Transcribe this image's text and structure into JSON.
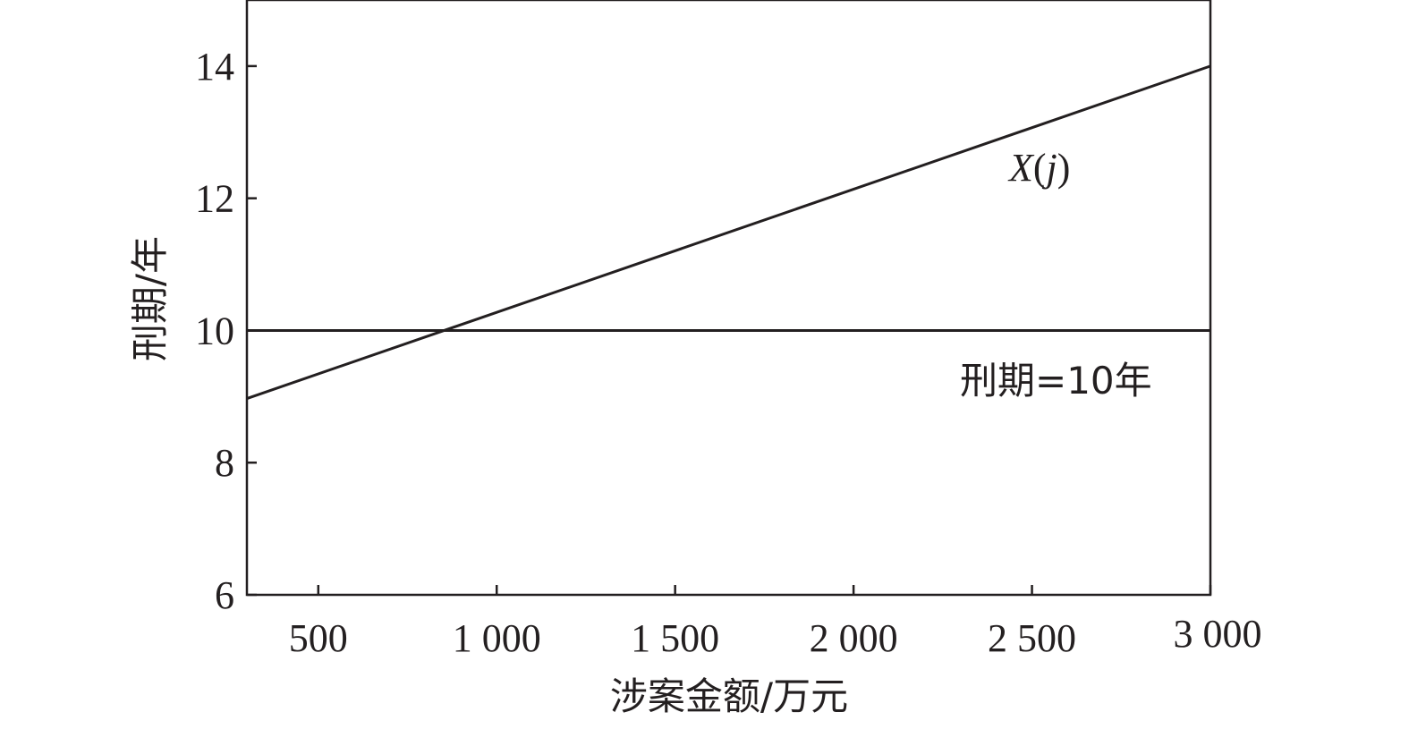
{
  "chart_data": {
    "type": "line",
    "title": "",
    "xlabel": "涉案金额/万元",
    "ylabel": "刑期/年",
    "xlim": [
      300,
      3000
    ],
    "ylim": [
      6,
      15
    ],
    "x_ticks": [
      500,
      1000,
      1500,
      2000,
      2500,
      3000
    ],
    "x_tick_labels": [
      "500",
      "1 000",
      "1 500",
      "2 000",
      "2 500",
      "3 000"
    ],
    "y_ticks": [
      6,
      8,
      10,
      12,
      14
    ],
    "y_tick_labels": [
      "6",
      "8",
      "10",
      "12",
      "14"
    ],
    "grid": false,
    "series": [
      {
        "name": "X(j)",
        "x": [
          300,
          3000
        ],
        "y": [
          8.97,
          14.0
        ],
        "color": "#231f20"
      },
      {
        "name": "刑期=10年",
        "x": [
          300,
          3000
        ],
        "y": [
          10,
          10
        ],
        "color": "#231f20"
      }
    ],
    "annotations": {
      "xj": {
        "italic_x": "X",
        "open_paren": "(",
        "italic_j": "j",
        "close_paren": ")"
      },
      "threshold": "刑期=10年"
    }
  }
}
